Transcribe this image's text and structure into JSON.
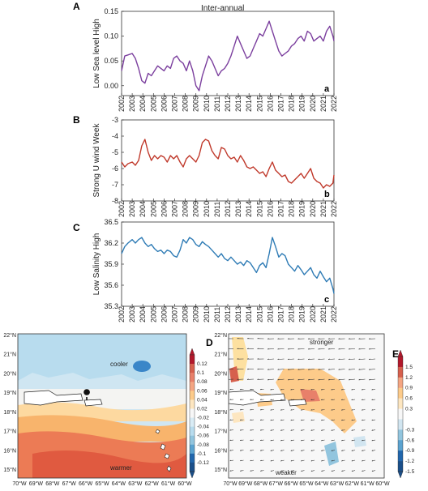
{
  "figure_title": "Inter-annual",
  "panel_letters": [
    "A",
    "B",
    "C",
    "D",
    "E"
  ],
  "chart_data": [
    {
      "type": "line",
      "panel": "A",
      "ylabel": "Low  Sea level High",
      "corner_label": "a",
      "ylim": [
        -0.02,
        0.15
      ],
      "yticks": [
        "0.15",
        "0.10",
        "0.05",
        "0.00"
      ],
      "ytick_values": [
        0.15,
        0.1,
        0.05,
        0.0
      ],
      "xlabels": [
        "2002",
        "2003",
        "2004",
        "2005",
        "2006",
        "2007",
        "2008",
        "2009",
        "2010",
        "2011",
        "2012",
        "2013",
        "2014",
        "2015",
        "2016",
        "2017",
        "2018",
        "2019",
        "2020",
        "2021",
        "2022"
      ],
      "color": "#7b3f9e",
      "x": [
        2002.0,
        2002.3,
        2002.6,
        2003.0,
        2003.3,
        2003.6,
        2003.9,
        2004.2,
        2004.5,
        2004.8,
        2005.1,
        2005.4,
        2005.7,
        2006.0,
        2006.3,
        2006.6,
        2006.9,
        2007.2,
        2007.5,
        2007.8,
        2008.1,
        2008.4,
        2008.7,
        2009.0,
        2009.3,
        2009.6,
        2009.9,
        2010.2,
        2010.5,
        2010.8,
        2011.1,
        2011.4,
        2011.7,
        2012.0,
        2012.3,
        2012.6,
        2012.9,
        2013.2,
        2013.5,
        2013.8,
        2014.1,
        2014.4,
        2014.7,
        2015.0,
        2015.3,
        2015.6,
        2015.9,
        2016.2,
        2016.5,
        2016.8,
        2017.1,
        2017.4,
        2017.7,
        2018.0,
        2018.3,
        2018.6,
        2018.9,
        2019.2,
        2019.5,
        2019.8,
        2020.1,
        2020.4,
        2020.7,
        2021.0,
        2021.3,
        2021.6,
        2021.9,
        2022.0
      ],
      "y": [
        0.03,
        0.06,
        0.062,
        0.065,
        0.055,
        0.035,
        0.01,
        0.005,
        0.025,
        0.02,
        0.03,
        0.04,
        0.035,
        0.03,
        0.04,
        0.035,
        0.055,
        0.06,
        0.05,
        0.045,
        0.03,
        0.05,
        0.03,
        0.0,
        -0.01,
        0.02,
        0.04,
        0.06,
        0.05,
        0.035,
        0.02,
        0.03,
        0.035,
        0.045,
        0.06,
        0.08,
        0.1,
        0.085,
        0.07,
        0.055,
        0.06,
        0.075,
        0.09,
        0.105,
        0.1,
        0.115,
        0.13,
        0.11,
        0.09,
        0.07,
        0.06,
        0.065,
        0.07,
        0.08,
        0.085,
        0.095,
        0.1,
        0.09,
        0.11,
        0.105,
        0.09,
        0.095,
        0.1,
        0.09,
        0.11,
        0.12,
        0.1,
        0.09
      ]
    },
    {
      "type": "line",
      "panel": "B",
      "ylabel": "Strong  U wind  Week",
      "corner_label": "b",
      "ylim": [
        -8,
        -3
      ],
      "yticks": [
        "-3",
        "-4",
        "-5",
        "-6",
        "-7",
        "-8"
      ],
      "ytick_values": [
        -3,
        -4,
        -5,
        -6,
        -7,
        -8
      ],
      "xlabels": [
        "2002",
        "2003",
        "2004",
        "2005",
        "2006",
        "2007",
        "2008",
        "2009",
        "2010",
        "2011",
        "2012",
        "2013",
        "2014",
        "2015",
        "2016",
        "2017",
        "2018",
        "2019",
        "2020",
        "2021",
        "2022"
      ],
      "color": "#c0392b",
      "x": [
        2002.0,
        2002.3,
        2002.6,
        2003.0,
        2003.3,
        2003.6,
        2003.9,
        2004.2,
        2004.5,
        2004.8,
        2005.1,
        2005.4,
        2005.7,
        2006.0,
        2006.3,
        2006.6,
        2006.9,
        2007.2,
        2007.5,
        2007.8,
        2008.1,
        2008.4,
        2008.7,
        2009.0,
        2009.3,
        2009.6,
        2009.9,
        2010.2,
        2010.5,
        2010.8,
        2011.1,
        2011.4,
        2011.7,
        2012.0,
        2012.3,
        2012.6,
        2012.9,
        2013.2,
        2013.5,
        2013.8,
        2014.1,
        2014.4,
        2014.7,
        2015.0,
        2015.3,
        2015.6,
        2015.9,
        2016.2,
        2016.5,
        2016.8,
        2017.1,
        2017.4,
        2017.7,
        2018.0,
        2018.3,
        2018.6,
        2018.9,
        2019.2,
        2019.5,
        2019.8,
        2020.1,
        2020.4,
        2020.7,
        2021.0,
        2021.3,
        2021.6,
        2021.9,
        2022.0
      ],
      "y": [
        -5.6,
        -5.9,
        -5.7,
        -5.6,
        -5.8,
        -5.5,
        -4.6,
        -4.2,
        -5.0,
        -5.5,
        -5.2,
        -5.4,
        -5.2,
        -5.3,
        -5.6,
        -5.2,
        -5.4,
        -5.2,
        -5.6,
        -5.9,
        -5.4,
        -5.2,
        -5.4,
        -5.6,
        -5.2,
        -4.4,
        -4.2,
        -4.3,
        -4.9,
        -5.2,
        -5.4,
        -4.7,
        -4.8,
        -5.2,
        -5.4,
        -5.3,
        -5.6,
        -5.2,
        -5.5,
        -5.9,
        -6.0,
        -5.9,
        -6.1,
        -6.3,
        -6.2,
        -6.5,
        -6.0,
        -5.6,
        -6.1,
        -6.3,
        -6.5,
        -6.4,
        -6.8,
        -6.9,
        -6.7,
        -6.5,
        -6.3,
        -6.6,
        -6.3,
        -6.0,
        -6.6,
        -6.8,
        -6.9,
        -7.2,
        -7.0,
        -7.1,
        -6.9,
        -6.4
      ]
    },
    {
      "type": "line",
      "panel": "C",
      "ylabel": "Low  Salinity  High",
      "corner_label": "c",
      "ylim": [
        35.3,
        36.5
      ],
      "yticks": [
        "36.5",
        "36.2",
        "35.9",
        "35.6",
        "35.3"
      ],
      "ytick_values": [
        36.5,
        36.2,
        35.9,
        35.6,
        35.3
      ],
      "xlabels": [
        "2002",
        "2003",
        "2004",
        "2005",
        "2006",
        "2007",
        "2008",
        "2009",
        "2010",
        "2011",
        "2012",
        "2013",
        "2014",
        "2015",
        "2016",
        "2017",
        "2018",
        "2019",
        "2020",
        "2021",
        "2022"
      ],
      "color": "#2e7bb5",
      "x": [
        2002.0,
        2002.3,
        2002.6,
        2003.0,
        2003.3,
        2003.6,
        2003.9,
        2004.2,
        2004.5,
        2004.8,
        2005.1,
        2005.4,
        2005.7,
        2006.0,
        2006.3,
        2006.6,
        2006.9,
        2007.2,
        2007.5,
        2007.8,
        2008.1,
        2008.4,
        2008.7,
        2009.0,
        2009.3,
        2009.6,
        2009.9,
        2010.2,
        2010.5,
        2010.8,
        2011.1,
        2011.4,
        2011.7,
        2012.0,
        2012.3,
        2012.6,
        2012.9,
        2013.2,
        2013.5,
        2013.8,
        2014.1,
        2014.4,
        2014.7,
        2015.0,
        2015.3,
        2015.6,
        2015.9,
        2016.2,
        2016.5,
        2016.8,
        2017.1,
        2017.4,
        2017.7,
        2018.0,
        2018.3,
        2018.6,
        2018.9,
        2019.2,
        2019.5,
        2019.8,
        2020.1,
        2020.4,
        2020.7,
        2021.0,
        2021.3,
        2021.6,
        2021.9,
        2022.0
      ],
      "y": [
        36.05,
        36.15,
        36.2,
        36.25,
        36.2,
        36.25,
        36.28,
        36.2,
        36.15,
        36.18,
        36.12,
        36.08,
        36.1,
        36.05,
        36.1,
        36.08,
        36.02,
        36.0,
        36.1,
        36.25,
        36.2,
        36.28,
        36.25,
        36.18,
        36.15,
        36.22,
        36.18,
        36.15,
        36.1,
        36.05,
        36.0,
        36.05,
        35.98,
        35.95,
        36.0,
        35.95,
        35.9,
        35.93,
        35.88,
        35.95,
        35.92,
        35.85,
        35.78,
        35.88,
        35.92,
        35.85,
        36.05,
        36.28,
        36.15,
        36.0,
        36.05,
        36.02,
        35.9,
        35.85,
        35.8,
        35.88,
        35.82,
        35.75,
        35.8,
        35.85,
        35.75,
        35.7,
        35.8,
        35.72,
        35.65,
        35.7,
        35.55,
        35.48
      ]
    }
  ],
  "map_d": {
    "lat_labels": [
      "22°N",
      "21°N",
      "20°N",
      "19°N",
      "18°N",
      "17°N",
      "16°N",
      "15°N"
    ],
    "lon_labels": [
      "70°W",
      "69°W",
      "68°W",
      "67°W",
      "66°W",
      "65°W",
      "64°W",
      "63°W",
      "62°W",
      "61°W",
      "60°W"
    ],
    "label_top": "cooler",
    "label_bottom": "warmer",
    "colorbar_labels": [
      "0.12",
      "0.1",
      "0.08",
      "0.06",
      "0.04",
      "0.02",
      "-0.02",
      "-0.04",
      "-0.06",
      "-0.08",
      "-0.1",
      "-0.12"
    ],
    "colorbar_colors": [
      "#b2182b",
      "#d6604d",
      "#e8806a",
      "#f4a582",
      "#fdcb8a",
      "#fde6c0",
      "#f7f7f7",
      "#d9ecf5",
      "#b8dcee",
      "#92c5de",
      "#5ba3d0",
      "#2166ac",
      "#1a4f8a"
    ]
  },
  "map_e": {
    "lat_labels": [
      "22°N",
      "21°N",
      "20°N",
      "19°N",
      "18°N",
      "17°N",
      "16°N",
      "15°N"
    ],
    "lon_labels": [
      "70°W",
      "69°W",
      "68°W",
      "67°W",
      "66°W",
      "65°W",
      "64°W",
      "63°W",
      "62°W",
      "61°W",
      "60°W"
    ],
    "label_top": "stronger",
    "label_bottom": "weaker",
    "colorbar_labels": [
      "1.5",
      "1.2",
      "0.9",
      "0.6",
      "0.3",
      "-0.3",
      "-0.6",
      "-0.9",
      "-1.2",
      "-1.5"
    ],
    "colorbar_colors": [
      "#b2182b",
      "#d6604d",
      "#f4a582",
      "#fdcb8a",
      "#fde6c0",
      "#f7f7f7",
      "#d1e5f0",
      "#92c5de",
      "#5ba3d0",
      "#2166ac",
      "#1a4f8a"
    ]
  }
}
